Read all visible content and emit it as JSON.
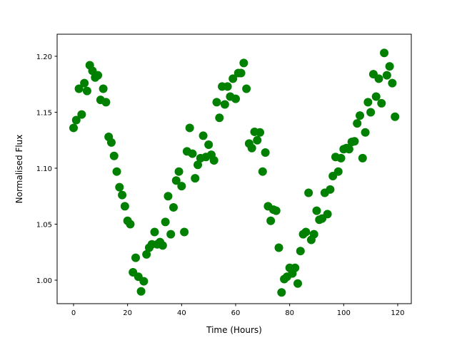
{
  "chart_data": {
    "type": "scatter",
    "title": "",
    "xlabel": "Time (Hours)",
    "ylabel": "Normalised Flux",
    "xlim": [
      -6.08,
      125.03
    ],
    "ylim": [
      0.979,
      1.2197
    ],
    "xticks": [
      0,
      20,
      40,
      60,
      80,
      100,
      120
    ],
    "xtick_labels": [
      "0",
      "20",
      "40",
      "60",
      "80",
      "100",
      "120"
    ],
    "yticks": [
      1.0,
      1.05,
      1.1,
      1.15,
      1.2
    ],
    "ytick_labels": [
      "1.00",
      "1.05",
      "1.10",
      "1.15",
      "1.20"
    ],
    "grid": false,
    "marker_color": "#008000",
    "x": [
      0,
      1,
      2,
      3,
      4,
      5,
      6,
      7,
      8,
      9,
      10,
      11,
      12,
      13,
      14,
      15,
      16,
      17,
      18,
      19,
      20,
      21,
      22,
      23,
      24,
      25,
      26,
      27,
      28,
      29,
      30,
      31,
      32,
      33,
      34,
      35,
      36,
      37,
      38,
      39,
      40,
      41,
      42,
      43,
      44,
      45,
      46,
      47,
      48,
      49,
      50,
      51,
      52,
      53,
      54,
      55,
      56,
      57,
      58,
      59,
      60,
      61,
      62,
      63,
      64,
      65,
      66,
      67,
      68,
      69,
      70,
      71,
      72,
      73,
      74,
      75,
      76,
      77,
      78,
      79,
      80,
      81,
      82,
      83,
      84,
      85,
      86,
      87,
      88,
      89,
      90,
      91,
      92,
      93,
      94,
      95,
      96,
      97,
      98,
      99,
      100,
      101,
      102,
      103,
      104,
      105,
      106,
      107,
      108,
      109,
      110,
      111,
      112,
      113,
      114,
      115,
      116,
      117,
      118,
      119
    ],
    "y": [
      1.136,
      1.143,
      1.171,
      1.148,
      1.176,
      1.169,
      1.192,
      1.187,
      1.181,
      1.183,
      1.161,
      1.171,
      1.159,
      1.128,
      1.123,
      1.111,
      1.097,
      1.083,
      1.076,
      1.066,
      1.053,
      1.05,
      1.007,
      1.02,
      1.003,
      0.99,
      0.999,
      1.023,
      1.029,
      1.032,
      1.043,
      1.032,
      1.034,
      1.031,
      1.052,
      1.075,
      1.041,
      1.065,
      1.089,
      1.097,
      1.084,
      1.043,
      1.115,
      1.136,
      1.113,
      1.091,
      1.103,
      1.109,
      1.129,
      1.11,
      1.121,
      1.112,
      1.107,
      1.159,
      1.145,
      1.173,
      1.157,
      1.173,
      1.164,
      1.18,
      1.162,
      1.185,
      1.185,
      1.194,
      1.171,
      1.122,
      1.118,
      1.1325,
      1.125,
      1.132,
      1.097,
      1.114,
      1.066,
      1.053,
      1.063,
      1.062,
      1.029,
      0.989,
      1.001,
      1.003,
      1.011,
      1.006,
      1.011,
      0.997,
      1.026,
      1.041,
      1.043,
      1.078,
      1.036,
      1.041,
      1.062,
      1.054,
      1.055,
      1.078,
      1.059,
      1.081,
      1.093,
      1.11,
      1.097,
      1.109,
      1.117,
      1.118,
      1.117,
      1.1235,
      1.124,
      1.14,
      1.147,
      1.109,
      1.132,
      1.159,
      1.15,
      1.184,
      1.164,
      1.18,
      1.158,
      1.203,
      1.183,
      1.191,
      1.176,
      1.146
    ]
  }
}
